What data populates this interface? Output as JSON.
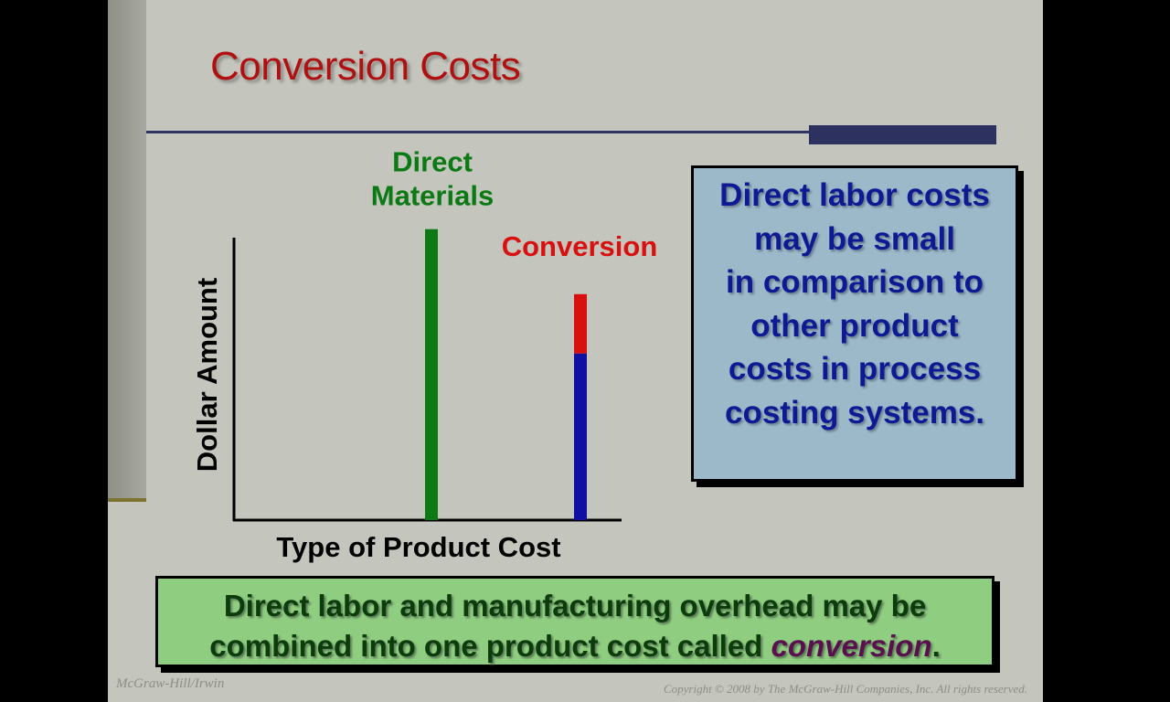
{
  "slide": {
    "title": "Conversion Costs",
    "callout_lines": [
      "Direct labor costs",
      "may be small",
      "in comparison to",
      "other product",
      "costs in process",
      "costing systems."
    ],
    "note_line1": "Direct labor and manufacturing overhead may be",
    "note_line2_prefix": "combined into one product cost called ",
    "note_line2_emphasis": "conversion",
    "note_line2_suffix": ".",
    "footer_left": "McGraw-Hill/Irwin",
    "footer_right": "Copyright © 2008 by The McGraw-Hill Companies, Inc. All rights reserved."
  },
  "colors": {
    "title": "#b01010",
    "direct_materials": "#0b7a14",
    "direct_labor": "#1010a0",
    "overhead": "#d81010",
    "accent": "#2d3160"
  },
  "chart_data": {
    "type": "bar",
    "xlabel": "Type of Product Cost",
    "ylabel": "Dollar Amount",
    "ylim": [
      0,
      100
    ],
    "grid": false,
    "categories": [
      "Direct Materials",
      "Conversion"
    ],
    "category_label_lines": [
      [
        "Direct",
        "Materials"
      ],
      [
        "Conversion"
      ]
    ],
    "series": [
      {
        "values": [
          103,
          59
        ],
        "colors": [
          "#0b7a14",
          "#1010a0"
        ]
      },
      {
        "values": [
          0,
          21
        ],
        "colors": [
          "#0b7a14",
          "#d81010"
        ]
      }
    ]
  }
}
